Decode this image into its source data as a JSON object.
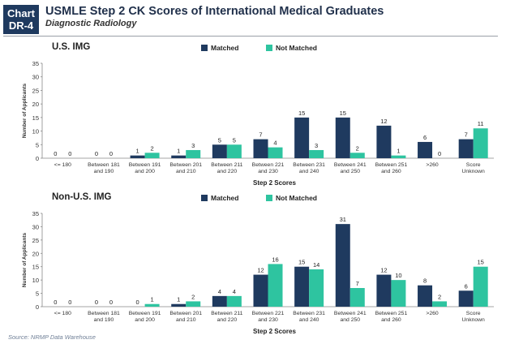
{
  "header": {
    "badge_line1": "Chart",
    "badge_line2": "DR-4",
    "title": "USMLE Step 2 CK Scores of International Medical Graduates",
    "subtitle": "Diagnostic Radiology"
  },
  "source": "Source: NRMP Data Warehouse",
  "colors": {
    "matched": "#1f3a5f",
    "not_matched": "#2ec4a0"
  },
  "chart_data": [
    {
      "type": "bar",
      "title": "U.S. IMG",
      "xlabel": "Step 2 Scores",
      "ylabel": "Number of Applicants",
      "ylim": [
        0,
        35
      ],
      "yticks": [
        0,
        5,
        10,
        15,
        20,
        25,
        30,
        35
      ],
      "legend": "top-center",
      "categories": [
        [
          "<= 180"
        ],
        [
          "Between 181",
          "and 190"
        ],
        [
          "Between 191",
          "and 200"
        ],
        [
          "Between 201",
          "and 210"
        ],
        [
          "Between 211",
          "and 220"
        ],
        [
          "Between 221",
          "and 230"
        ],
        [
          "Between 231",
          "and 240"
        ],
        [
          "Between 241",
          "and 250"
        ],
        [
          "Between 251",
          "and 260"
        ],
        [
          ">260"
        ],
        [
          "Score",
          "Unknown"
        ]
      ],
      "series": [
        {
          "name": "Matched",
          "values": [
            0,
            0,
            1,
            1,
            5,
            7,
            15,
            15,
            12,
            6,
            7
          ]
        },
        {
          "name": "Not Matched",
          "values": [
            0,
            0,
            2,
            3,
            5,
            4,
            3,
            2,
            1,
            0,
            11
          ]
        }
      ]
    },
    {
      "type": "bar",
      "title": "Non-U.S. IMG",
      "xlabel": "Step 2 Scores",
      "ylabel": "Number of Applicants",
      "ylim": [
        0,
        35
      ],
      "yticks": [
        0,
        5,
        10,
        15,
        20,
        25,
        30,
        35
      ],
      "legend": "top-center",
      "categories": [
        [
          "<= 180"
        ],
        [
          "Between 181",
          "and 190"
        ],
        [
          "Between 191",
          "and 200"
        ],
        [
          "Between 201",
          "and 210"
        ],
        [
          "Between 211",
          "and 220"
        ],
        [
          "Between 221",
          "and 230"
        ],
        [
          "Between 231",
          "and 240"
        ],
        [
          "Between 241",
          "and 250"
        ],
        [
          "Between 251",
          "and 260"
        ],
        [
          ">260"
        ],
        [
          "Score",
          "Unknown"
        ]
      ],
      "series": [
        {
          "name": "Matched",
          "values": [
            0,
            0,
            0,
            1,
            4,
            12,
            15,
            31,
            12,
            8,
            6
          ]
        },
        {
          "name": "Not Matched",
          "values": [
            0,
            0,
            1,
            2,
            4,
            16,
            14,
            7,
            10,
            2,
            15
          ]
        }
      ]
    }
  ]
}
